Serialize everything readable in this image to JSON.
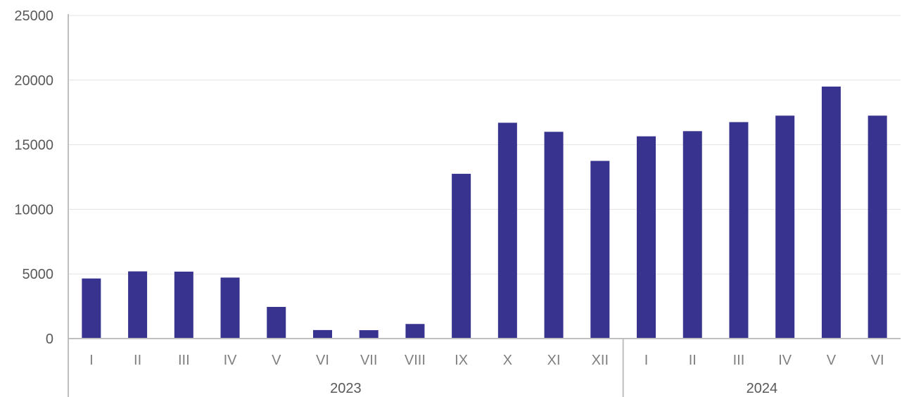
{
  "chart_data": {
    "type": "bar",
    "title": "",
    "xlabel": "",
    "ylabel": "",
    "ylim": [
      0,
      25000
    ],
    "yticks": [
      0,
      5000,
      10000,
      15000,
      20000,
      25000
    ],
    "grid": true,
    "legend": "none",
    "bar_color": "#37338f",
    "grid_color": "#e3e3e3",
    "axis_color": "#bfbfbf",
    "groups": [
      {
        "label": "2023",
        "count": 12
      },
      {
        "label": "2024",
        "count": 6
      }
    ],
    "categories": [
      "I",
      "II",
      "III",
      "IV",
      "V",
      "VI",
      "VII",
      "VIII",
      "IX",
      "X",
      "XI",
      "XII",
      "I",
      "II",
      "III",
      "IV",
      "V",
      "VI"
    ],
    "values": [
      4650,
      5200,
      5180,
      4720,
      2450,
      660,
      650,
      1130,
      12750,
      16700,
      16000,
      13750,
      15650,
      16050,
      16750,
      17250,
      19500,
      17250
    ]
  }
}
